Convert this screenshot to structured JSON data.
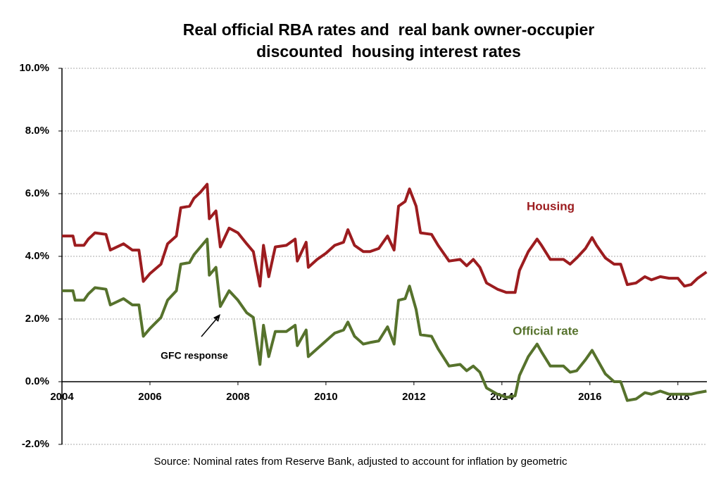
{
  "chart_data": {
    "type": "line",
    "title": [
      "Real official RBA rates and  real bank owner-occupier",
      "discounted  housing interest rates"
    ],
    "source": "Source: Nominal rates from Reserve Bank, adjusted to account for inflation by geometric",
    "annotations": [
      "Housing",
      "Official rate",
      "GFC response"
    ],
    "x": [
      2004.0,
      2004.25,
      2004.3,
      2004.5,
      2004.6,
      2004.75,
      2005.0,
      2005.1,
      2005.4,
      2005.6,
      2005.75,
      2005.85,
      2006.0,
      2006.25,
      2006.4,
      2006.6,
      2006.7,
      2006.9,
      2007.0,
      2007.15,
      2007.3,
      2007.35,
      2007.5,
      2007.6,
      2007.8,
      2008.0,
      2008.2,
      2008.35,
      2008.5,
      2008.58,
      2008.7,
      2008.85,
      2009.1,
      2009.3,
      2009.35,
      2009.55,
      2009.6,
      2009.8,
      2010.0,
      2010.2,
      2010.4,
      2010.5,
      2010.65,
      2010.85,
      2011.0,
      2011.2,
      2011.4,
      2011.55,
      2011.65,
      2011.8,
      2011.9,
      2012.05,
      2012.15,
      2012.4,
      2012.55,
      2012.8,
      2013.05,
      2013.2,
      2013.35,
      2013.5,
      2013.65,
      2013.9,
      2014.1,
      2014.3,
      2014.4,
      2014.6,
      2014.8,
      2014.9,
      2015.1,
      2015.4,
      2015.55,
      2015.7,
      2015.9,
      2016.05,
      2016.15,
      2016.35,
      2016.55,
      2016.7,
      2016.85,
      2017.05,
      2017.25,
      2017.4,
      2017.6,
      2017.8,
      2018.0,
      2018.15,
      2018.3,
      2018.45,
      2018.65
    ],
    "series": [
      {
        "name": "Housing",
        "color": "#9c1c1f",
        "values": [
          4.65,
          4.65,
          4.35,
          4.35,
          4.55,
          4.75,
          4.7,
          4.2,
          4.4,
          4.2,
          4.2,
          3.2,
          3.45,
          3.75,
          4.4,
          4.65,
          5.55,
          5.6,
          5.85,
          6.05,
          6.3,
          5.2,
          5.45,
          4.3,
          4.9,
          4.75,
          4.4,
          4.15,
          3.05,
          4.35,
          3.35,
          4.3,
          4.35,
          4.55,
          3.85,
          4.45,
          3.65,
          3.9,
          4.1,
          4.35,
          4.45,
          4.85,
          4.35,
          4.15,
          4.15,
          4.25,
          4.65,
          4.2,
          5.6,
          5.75,
          6.15,
          5.6,
          4.75,
          4.7,
          4.35,
          3.85,
          3.9,
          3.7,
          3.9,
          3.65,
          3.15,
          2.95,
          2.85,
          2.85,
          3.55,
          4.15,
          4.55,
          4.35,
          3.9,
          3.9,
          3.75,
          3.95,
          4.25,
          4.6,
          4.35,
          3.95,
          3.75,
          3.75,
          3.1,
          3.15,
          3.35,
          3.25,
          3.35,
          3.3,
          3.3,
          3.05,
          3.1,
          3.3,
          3.5
        ]
      },
      {
        "name": "Official rate",
        "color": "#56722c",
        "values": [
          2.9,
          2.9,
          2.6,
          2.6,
          2.8,
          3.0,
          2.95,
          2.45,
          2.65,
          2.45,
          2.45,
          1.45,
          1.7,
          2.05,
          2.6,
          2.9,
          3.75,
          3.8,
          4.05,
          4.3,
          4.55,
          3.4,
          3.65,
          2.4,
          2.9,
          2.6,
          2.2,
          2.05,
          0.55,
          1.8,
          0.8,
          1.6,
          1.6,
          1.8,
          1.15,
          1.65,
          0.8,
          1.05,
          1.3,
          1.55,
          1.65,
          1.9,
          1.45,
          1.2,
          1.25,
          1.3,
          1.75,
          1.2,
          2.6,
          2.65,
          3.05,
          2.3,
          1.5,
          1.45,
          1.05,
          0.5,
          0.55,
          0.35,
          0.5,
          0.3,
          -0.2,
          -0.4,
          -0.5,
          -0.45,
          0.2,
          0.8,
          1.2,
          0.95,
          0.5,
          0.5,
          0.3,
          0.35,
          0.7,
          1.0,
          0.75,
          0.25,
          0.0,
          0.0,
          -0.6,
          -0.55,
          -0.35,
          -0.4,
          -0.3,
          -0.4,
          -0.4,
          -0.4,
          -0.4,
          -0.35,
          -0.3
        ]
      }
    ],
    "xlim": [
      2004,
      2018.66
    ],
    "xticks": [
      2004,
      2006,
      2008,
      2010,
      2012,
      2014,
      2016,
      2018
    ],
    "ylim": [
      -2,
      10
    ],
    "yticks": [
      {
        "value": -2,
        "label": "-2.0%"
      },
      {
        "value": 0,
        "label": "0.0%"
      },
      {
        "value": 2,
        "label": "2.0%"
      },
      {
        "value": 4,
        "label": "4.0%"
      },
      {
        "value": 6,
        "label": "6.0%"
      },
      {
        "value": 8,
        "label": "8.0%"
      },
      {
        "value": 10,
        "label": "10.0%"
      }
    ],
    "grid": true
  }
}
